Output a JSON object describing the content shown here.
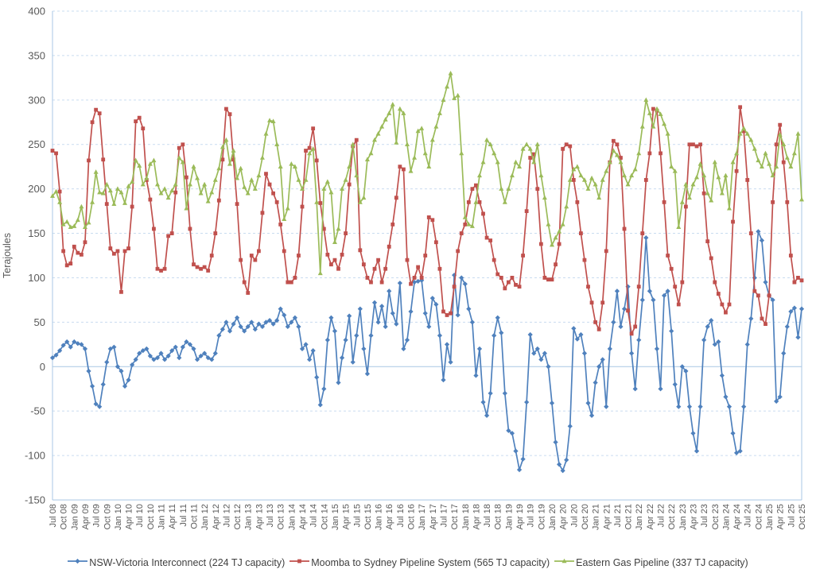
{
  "chart_data": {
    "type": "line",
    "title": "",
    "ylabel": "Terajoules",
    "ylim": [
      -150,
      400
    ],
    "yticks": [
      400,
      350,
      300,
      250,
      200,
      150,
      100,
      50,
      0,
      -50,
      -100,
      -150
    ],
    "grid": "horizontal-dashed",
    "legend_position": "bottom",
    "x_tick_labels": [
      "Jul 08",
      "Oct 08",
      "Jan 09",
      "Apr 09",
      "Jul 09",
      "Oct 09",
      "Jan 10",
      "Apr 10",
      "Jul 10",
      "Oct 10",
      "Jan 11",
      "Apr 11",
      "Jul 11",
      "Oct 11",
      "Jan 12",
      "Apr 12",
      "Jul 12",
      "Oct 12",
      "Jan 13",
      "Apr 13",
      "Jul 13",
      "Oct 13",
      "Jan 14",
      "Apr 14",
      "Jul 14",
      "Oct 14",
      "Jan 15",
      "Apr 15",
      "Jul 15",
      "Oct 15",
      "Jan 16",
      "Apr 16",
      "Jul 16",
      "Oct 16",
      "Jan 17",
      "Apr 17",
      "Jul 17",
      "Oct 17",
      "Jan 18",
      "Apr 18",
      "Jul 18",
      "Oct 18",
      "Jan 19",
      "Apr 19",
      "Jul 19",
      "Oct 19",
      "Jan 20",
      "Apr 20",
      "Jul 20",
      "Oct 20",
      "Jan 21",
      "Apr 21",
      "Jul 21",
      "Oct 21",
      "Jan 22",
      "Apr 22",
      "Jul 22",
      "Oct 22",
      "Jan 23",
      "Apr 23",
      "Jul 23",
      "Oct 23",
      "Jan 24",
      "Apr 24",
      "Jul 24",
      "Oct 24",
      "Jan 25",
      "Apr 25",
      "Jul 25",
      "Oct 25"
    ],
    "x_points_per_tick": 3,
    "colors": {
      "gridline": "#c9dcf0",
      "axis_line": "#a9c7e4",
      "tick_text": "#595959",
      "legend_text": "#3f3f3f"
    },
    "series": [
      {
        "name": "NSW-Victoria Interconnect (224 TJ capacity)",
        "color": "#4F81BD",
        "marker": "diamond",
        "values": [
          10,
          13,
          18,
          24,
          28,
          22,
          28,
          26,
          25,
          20,
          -5,
          -22,
          -42,
          -45,
          -20,
          5,
          20,
          22,
          0,
          -5,
          -22,
          -15,
          2,
          8,
          15,
          18,
          20,
          12,
          8,
          10,
          15,
          8,
          12,
          18,
          22,
          10,
          22,
          28,
          25,
          20,
          8,
          12,
          15,
          10,
          8,
          15,
          35,
          42,
          50,
          40,
          48,
          55,
          45,
          40,
          45,
          50,
          42,
          48,
          45,
          50,
          52,
          48,
          52,
          65,
          58,
          45,
          50,
          55,
          45,
          20,
          25,
          8,
          18,
          -12,
          -43,
          -25,
          30,
          55,
          40,
          -18,
          10,
          30,
          57,
          5,
          35,
          65,
          20,
          -8,
          35,
          72,
          50,
          68,
          45,
          85,
          60,
          48,
          94,
          20,
          30,
          62,
          95,
          96,
          97,
          60,
          45,
          77,
          70,
          35,
          -15,
          25,
          5,
          103,
          58,
          100,
          93,
          65,
          50,
          -10,
          20,
          -40,
          -55,
          -30,
          35,
          55,
          38,
          -30,
          -72,
          -75,
          -95,
          -116,
          -104,
          -40,
          36,
          15,
          20,
          8,
          15,
          0,
          -41,
          -85,
          -110,
          -117,
          -105,
          -67,
          43,
          31,
          36,
          15,
          -41,
          -55,
          -18,
          0,
          8,
          -45,
          20,
          50,
          85,
          45,
          65,
          90,
          15,
          -25,
          30,
          75,
          145,
          85,
          75,
          20,
          -25,
          80,
          85,
          40,
          -20,
          -45,
          0,
          -5,
          -45,
          -75,
          -95,
          -45,
          30,
          45,
          52,
          25,
          28,
          -10,
          -34,
          -45,
          -75,
          -97,
          -95,
          -45,
          25,
          54,
          100,
          152,
          142,
          95,
          80,
          75,
          -39,
          -34,
          15,
          45,
          62,
          66,
          33,
          65
        ]
      },
      {
        "name": "Moomba to Sydney Pipeline System (565 TJ capacity)",
        "color": "#C0504D",
        "marker": "square",
        "values": [
          243,
          240,
          197,
          130,
          114,
          116,
          135,
          128,
          126,
          140,
          232,
          275,
          289,
          285,
          233,
          183,
          133,
          127,
          130,
          84,
          130,
          133,
          180,
          276,
          280,
          268,
          210,
          188,
          155,
          110,
          108,
          110,
          147,
          150,
          196,
          246,
          250,
          213,
          155,
          115,
          112,
          110,
          112,
          108,
          125,
          150,
          187,
          233,
          290,
          284,
          233,
          183,
          120,
          95,
          83,
          125,
          120,
          130,
          173,
          217,
          205,
          195,
          185,
          160,
          130,
          95,
          95,
          100,
          125,
          180,
          243,
          246,
          268,
          232,
          184,
          155,
          126,
          115,
          120,
          110,
          126,
          150,
          205,
          248,
          255,
          131,
          115,
          100,
          95,
          110,
          120,
          95,
          110,
          135,
          160,
          190,
          225,
          222,
          120,
          93,
          100,
          112,
          100,
          125,
          168,
          165,
          140,
          110,
          62,
          58,
          60,
          90,
          130,
          150,
          160,
          185,
          200,
          204,
          185,
          172,
          145,
          142,
          120,
          104,
          100,
          88,
          95,
          100,
          92,
          90,
          125,
          175,
          235,
          239,
          200,
          138,
          100,
          98,
          98,
          115,
          138,
          245,
          250,
          248,
          210,
          185,
          150,
          120,
          90,
          72,
          50,
          42,
          72,
          130,
          230,
          254,
          250,
          235,
          155,
          63,
          37,
          45,
          90,
          150,
          210,
          240,
          290,
          288,
          240,
          185,
          125,
          110,
          90,
          70,
          95,
          180,
          250,
          250,
          248,
          250,
          195,
          141,
          122,
          95,
          82,
          70,
          61,
          70,
          163,
          220,
          292,
          265,
          210,
          150,
          85,
          80,
          54,
          48,
          80,
          185,
          250,
          272,
          230,
          185,
          125,
          95,
          100,
          97
        ]
      },
      {
        "name": "Eastern Gas Pipeline (337 TJ capacity)",
        "color": "#9BBB59",
        "marker": "triangle",
        "values": [
          192,
          197,
          185,
          160,
          163,
          157,
          158,
          165,
          180,
          157,
          162,
          185,
          219,
          196,
          195,
          205,
          198,
          183,
          200,
          196,
          184,
          203,
          208,
          232,
          226,
          205,
          212,
          228,
          232,
          205,
          195,
          200,
          190,
          198,
          205,
          235,
          230,
          178,
          205,
          225,
          212,
          195,
          205,
          186,
          196,
          210,
          223,
          247,
          255,
          228,
          243,
          212,
          223,
          202,
          195,
          210,
          200,
          215,
          235,
          262,
          277,
          276,
          250,
          225,
          166,
          178,
          228,
          225,
          210,
          200,
          210,
          240,
          245,
          185,
          105,
          200,
          208,
          196,
          140,
          155,
          200,
          210,
          225,
          250,
          215,
          185,
          190,
          233,
          240,
          255,
          262,
          270,
          278,
          285,
          295,
          252,
          290,
          285,
          250,
          220,
          235,
          265,
          268,
          240,
          225,
          255,
          270,
          285,
          300,
          315,
          330,
          302,
          305,
          240,
          168,
          160,
          158,
          185,
          215,
          230,
          255,
          250,
          240,
          230,
          200,
          185,
          200,
          215,
          230,
          225,
          245,
          250,
          245,
          230,
          250,
          215,
          190,
          160,
          137,
          145,
          152,
          160,
          180,
          210,
          222,
          225,
          215,
          210,
          200,
          212,
          205,
          190,
          210,
          220,
          230,
          243,
          238,
          230,
          215,
          205,
          215,
          222,
          240,
          270,
          300,
          285,
          270,
          290,
          284,
          273,
          262,
          225,
          220,
          157,
          185,
          205,
          190,
          205,
          213,
          228,
          215,
          195,
          187,
          230,
          213,
          195,
          215,
          178,
          230,
          240,
          262,
          268,
          262,
          255,
          245,
          232,
          225,
          240,
          228,
          215,
          225,
          261,
          250,
          235,
          225,
          240,
          262,
          188
        ]
      }
    ]
  }
}
